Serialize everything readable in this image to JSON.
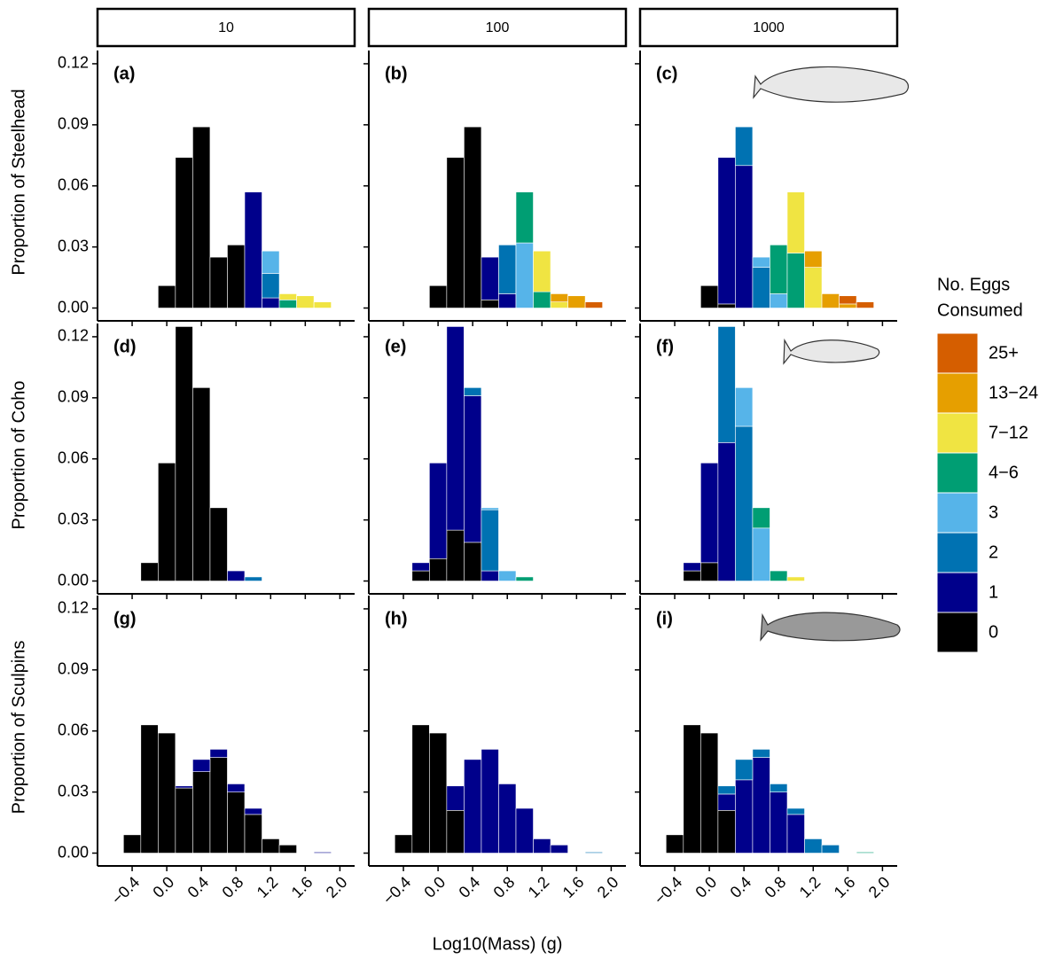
{
  "chart_data": {
    "type": "histogram",
    "columns": [
      "10",
      "100",
      "1000"
    ],
    "ylabels": [
      "Proportion of Steelhead",
      "Proportion of Coho",
      "Proportion of Sculpins"
    ],
    "xlabel": "Log10(Mass) (g)",
    "legend_title": [
      "No. Eggs",
      "Consumed"
    ],
    "bins": [
      -0.5,
      -0.3,
      -0.1,
      0.1,
      0.3,
      0.5,
      0.7,
      0.9,
      1.1,
      1.3,
      1.5,
      1.7,
      1.9,
      2.1
    ],
    "xlim": [
      -0.8,
      2.17
    ],
    "xticks": [
      {
        "value": -0.4,
        "label": "−0.4"
      },
      {
        "value": 0,
        "label": "0.0"
      },
      0.4,
      0.8,
      1.2,
      1.6,
      {
        "value": 2,
        "label": "2.0"
      }
    ],
    "ylim": [
      -0.0063,
      0.1265
    ],
    "yticks": [
      {
        "value": 0,
        "label": "0.00"
      },
      0.03,
      0.06,
      0.09,
      0.12
    ],
    "series": [
      {
        "name": "0",
        "color": "#000000"
      },
      {
        "name": "1",
        "color": "#00008B"
      },
      {
        "name": "2",
        "color": "#0072B2"
      },
      {
        "name": "3",
        "color": "#56B4E9"
      },
      {
        "name": "4−6",
        "color": "#009E73"
      },
      {
        "name": "7−12",
        "color": "#F0E442"
      },
      {
        "name": "13−24",
        "color": "#E69F00"
      },
      {
        "name": "25+",
        "color": "#D55E00"
      }
    ],
    "panels": [
      {
        "tag": "(a)",
        "values": [
          [
            0,
            0,
            0.011,
            0.074,
            0.089,
            0.025,
            0.031,
            0,
            0,
            0,
            0,
            0,
            0
          ],
          [
            0,
            0,
            0,
            0,
            0,
            0,
            0,
            0.057,
            0.005,
            0,
            0,
            0,
            0
          ],
          [
            0,
            0,
            0,
            0,
            0,
            0,
            0,
            0,
            0.012,
            0,
            0,
            0,
            0
          ],
          [
            0,
            0,
            0,
            0,
            0,
            0,
            0,
            0,
            0.011,
            0,
            0,
            0,
            0
          ],
          [
            0,
            0,
            0,
            0,
            0,
            0,
            0,
            0,
            0,
            0.004,
            0,
            0,
            0
          ],
          [
            0,
            0,
            0,
            0,
            0,
            0,
            0,
            0,
            0,
            0.003,
            0.006,
            0.003,
            0
          ],
          [
            0,
            0,
            0,
            0,
            0,
            0,
            0,
            0,
            0,
            0,
            0,
            0,
            0
          ],
          [
            0,
            0,
            0,
            0,
            0,
            0,
            0,
            0,
            0,
            0,
            0,
            0,
            0
          ]
        ]
      },
      {
        "tag": "(b)",
        "values": [
          [
            0,
            0,
            0.011,
            0.074,
            0.089,
            0.004,
            0,
            0,
            0,
            0,
            0,
            0,
            0
          ],
          [
            0,
            0,
            0,
            0,
            0,
            0.021,
            0.007,
            0,
            0,
            0,
            0,
            0,
            0
          ],
          [
            0,
            0,
            0,
            0,
            0,
            0,
            0.024,
            0,
            0,
            0,
            0,
            0,
            0
          ],
          [
            0,
            0,
            0,
            0,
            0,
            0,
            0,
            0.032,
            0,
            0,
            0,
            0,
            0
          ],
          [
            0,
            0,
            0,
            0,
            0,
            0,
            0,
            0.025,
            0.008,
            0,
            0,
            0,
            0
          ],
          [
            0,
            0,
            0,
            0,
            0,
            0,
            0,
            0,
            0.02,
            0.003,
            0,
            0,
            0
          ],
          [
            0,
            0,
            0,
            0,
            0,
            0,
            0,
            0,
            0,
            0.004,
            0.006,
            0,
            0
          ],
          [
            0,
            0,
            0,
            0,
            0,
            0,
            0,
            0,
            0,
            0,
            0,
            0.003,
            0
          ]
        ]
      },
      {
        "tag": "(c)",
        "values": [
          [
            0,
            0,
            0.011,
            0.002,
            0,
            0,
            0,
            0,
            0,
            0,
            0,
            0,
            0
          ],
          [
            0,
            0,
            0,
            0.072,
            0.07,
            0,
            0,
            0,
            0,
            0,
            0,
            0,
            0
          ],
          [
            0,
            0,
            0,
            0,
            0.019,
            0.02,
            0,
            0,
            0,
            0,
            0,
            0,
            0
          ],
          [
            0,
            0,
            0,
            0,
            0,
            0.005,
            0.007,
            0,
            0,
            0,
            0,
            0,
            0
          ],
          [
            0,
            0,
            0,
            0,
            0,
            0,
            0.024,
            0.027,
            0,
            0,
            0,
            0,
            0
          ],
          [
            0,
            0,
            0,
            0,
            0,
            0,
            0,
            0.03,
            0.02,
            0,
            0,
            0,
            0
          ],
          [
            0,
            0,
            0,
            0,
            0,
            0,
            0,
            0,
            0.008,
            0.007,
            0.002,
            0,
            0
          ],
          [
            0,
            0,
            0,
            0,
            0,
            0,
            0,
            0,
            0,
            0,
            0.004,
            0.003,
            0
          ]
        ]
      },
      {
        "tag": "(d)",
        "values": [
          [
            0,
            0.009,
            0.058,
            0.125,
            0.095,
            0.036,
            0,
            0,
            0,
            0,
            0,
            0,
            0
          ],
          [
            0,
            0,
            0,
            0,
            0,
            0,
            0.005,
            0,
            0,
            0,
            0,
            0,
            0
          ],
          [
            0,
            0,
            0,
            0,
            0,
            0,
            0,
            0.002,
            0,
            0,
            0,
            0,
            0
          ],
          [
            0,
            0,
            0,
            0,
            0,
            0,
            0,
            0,
            0,
            0,
            0,
            0,
            0
          ],
          [
            0,
            0,
            0,
            0,
            0,
            0,
            0,
            0,
            0,
            0,
            0,
            0,
            0
          ],
          [
            0,
            0,
            0,
            0,
            0,
            0,
            0,
            0,
            0,
            0,
            0,
            0,
            0
          ],
          [
            0,
            0,
            0,
            0,
            0,
            0,
            0,
            0,
            0,
            0,
            0,
            0,
            0
          ],
          [
            0,
            0,
            0,
            0,
            0,
            0,
            0,
            0,
            0,
            0,
            0,
            0,
            0
          ]
        ]
      },
      {
        "tag": "(e)",
        "values": [
          [
            0,
            0.005,
            0.011,
            0.025,
            0.019,
            0,
            0,
            0,
            0,
            0,
            0,
            0,
            0
          ],
          [
            0,
            0.004,
            0.047,
            0.1,
            0.072,
            0.005,
            0,
            0,
            0,
            0,
            0,
            0,
            0
          ],
          [
            0,
            0,
            0,
            0,
            0.004,
            0.03,
            0,
            0,
            0,
            0,
            0,
            0,
            0
          ],
          [
            0,
            0,
            0,
            0,
            0,
            0.001,
            0.005,
            0,
            0,
            0,
            0,
            0,
            0
          ],
          [
            0,
            0,
            0,
            0,
            0,
            0,
            0,
            0.002,
            0,
            0,
            0,
            0,
            0
          ],
          [
            0,
            0,
            0,
            0,
            0,
            0,
            0,
            0,
            0,
            0,
            0,
            0,
            0
          ],
          [
            0,
            0,
            0,
            0,
            0,
            0,
            0,
            0,
            0,
            0,
            0,
            0,
            0
          ],
          [
            0,
            0,
            0,
            0,
            0,
            0,
            0,
            0,
            0,
            0,
            0,
            0,
            0
          ]
        ]
      },
      {
        "tag": "(f)",
        "values": [
          [
            0,
            0.005,
            0.009,
            0,
            0,
            0,
            0,
            0,
            0,
            0,
            0,
            0,
            0
          ],
          [
            0,
            0.004,
            0.049,
            0.068,
            0,
            0,
            0,
            0,
            0,
            0,
            0,
            0,
            0
          ],
          [
            0,
            0,
            0,
            0.057,
            0.076,
            0,
            0,
            0,
            0,
            0,
            0,
            0,
            0
          ],
          [
            0,
            0,
            0,
            0,
            0.019,
            0.026,
            0,
            0,
            0,
            0,
            0,
            0,
            0
          ],
          [
            0,
            0,
            0,
            0,
            0,
            0.01,
            0.005,
            0,
            0,
            0,
            0,
            0,
            0
          ],
          [
            0,
            0,
            0,
            0,
            0,
            0,
            0,
            0.002,
            0,
            0,
            0,
            0,
            0
          ],
          [
            0,
            0,
            0,
            0,
            0,
            0,
            0,
            0,
            0,
            0,
            0,
            0,
            0
          ],
          [
            0,
            0,
            0,
            0,
            0,
            0,
            0,
            0,
            0,
            0,
            0,
            0,
            0
          ]
        ]
      },
      {
        "tag": "(g)",
        "values": [
          [
            0.009,
            0.063,
            0.059,
            0.032,
            0.04,
            0.047,
            0.03,
            0.019,
            0.007,
            0.004,
            0,
            0,
            0
          ],
          [
            0,
            0,
            0,
            0.001,
            0.006,
            0.004,
            0.004,
            0.003,
            0,
            0,
            0,
            0.0005,
            0
          ],
          [
            0,
            0,
            0,
            0,
            0,
            0,
            0,
            0,
            0,
            0,
            0,
            0,
            0
          ],
          [
            0,
            0,
            0,
            0,
            0,
            0,
            0,
            0,
            0,
            0,
            0,
            0,
            0
          ],
          [
            0,
            0,
            0,
            0,
            0,
            0,
            0,
            0,
            0,
            0,
            0,
            0,
            0
          ],
          [
            0,
            0,
            0,
            0,
            0,
            0,
            0,
            0,
            0,
            0,
            0,
            0,
            0
          ],
          [
            0,
            0,
            0,
            0,
            0,
            0,
            0,
            0,
            0,
            0,
            0,
            0,
            0
          ],
          [
            0,
            0,
            0,
            0,
            0,
            0,
            0,
            0,
            0,
            0,
            0,
            0,
            0
          ]
        ]
      },
      {
        "tag": "(h)",
        "values": [
          [
            0.009,
            0.063,
            0.059,
            0.021,
            0,
            0,
            0,
            0,
            0,
            0,
            0,
            0,
            0
          ],
          [
            0,
            0,
            0,
            0.012,
            0.046,
            0.051,
            0.034,
            0.022,
            0.007,
            0.004,
            0,
            0,
            0
          ],
          [
            0,
            0,
            0,
            0,
            0,
            0,
            0,
            0,
            0,
            0,
            0,
            0.0005,
            0
          ],
          [
            0,
            0,
            0,
            0,
            0,
            0,
            0,
            0,
            0,
            0,
            0,
            0,
            0
          ],
          [
            0,
            0,
            0,
            0,
            0,
            0,
            0,
            0,
            0,
            0,
            0,
            0,
            0
          ],
          [
            0,
            0,
            0,
            0,
            0,
            0,
            0,
            0,
            0,
            0,
            0,
            0,
            0
          ],
          [
            0,
            0,
            0,
            0,
            0,
            0,
            0,
            0,
            0,
            0,
            0,
            0,
            0
          ],
          [
            0,
            0,
            0,
            0,
            0,
            0,
            0,
            0,
            0,
            0,
            0,
            0,
            0
          ]
        ]
      },
      {
        "tag": "(i)",
        "values": [
          [
            0.009,
            0.063,
            0.059,
            0.021,
            0,
            0,
            0,
            0,
            0,
            0,
            0,
            0,
            0
          ],
          [
            0,
            0,
            0,
            0.008,
            0.036,
            0.047,
            0.03,
            0.019,
            0,
            0,
            0,
            0,
            0
          ],
          [
            0,
            0,
            0,
            0.004,
            0.01,
            0.004,
            0.004,
            0.003,
            0.007,
            0.004,
            0,
            0,
            0
          ],
          [
            0,
            0,
            0,
            0,
            0,
            0,
            0,
            0,
            0,
            0,
            0,
            0,
            0
          ],
          [
            0,
            0,
            0,
            0,
            0,
            0,
            0,
            0,
            0,
            0,
            0,
            0.0005,
            0
          ],
          [
            0,
            0,
            0,
            0,
            0,
            0,
            0,
            0,
            0,
            0,
            0,
            0,
            0
          ],
          [
            0,
            0,
            0,
            0,
            0,
            0,
            0,
            0,
            0,
            0,
            0,
            0,
            0
          ],
          [
            0,
            0,
            0,
            0,
            0,
            0,
            0,
            0,
            0,
            0,
            0,
            0,
            0
          ]
        ]
      }
    ]
  }
}
